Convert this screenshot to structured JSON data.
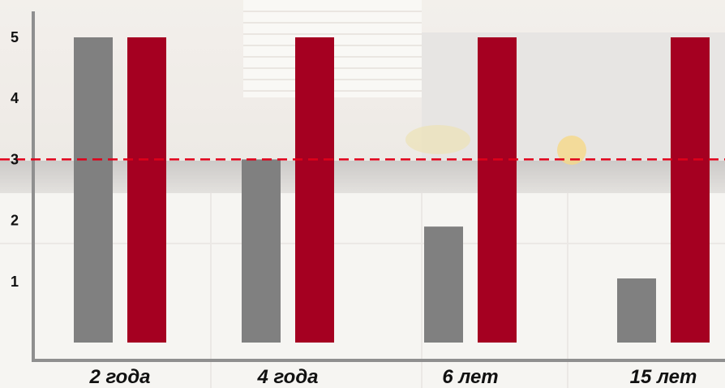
{
  "chart_data": {
    "type": "bar",
    "categories": [
      "2 года",
      "4 года",
      "6 лет",
      "15 лет"
    ],
    "series": [
      {
        "values": [
          5,
          3,
          1.9,
          1.05
        ],
        "color": "#808080"
      },
      {
        "values": [
          5,
          5,
          5,
          5
        ],
        "color": "#a50021"
      }
    ],
    "yticks": [
      1,
      2,
      3,
      4,
      5
    ],
    "ylim": [
      0,
      5.4
    ],
    "reference_line": {
      "value": 3,
      "color": "#e0001a",
      "style": "dashed"
    },
    "grid": false,
    "title": "",
    "xlabel": "",
    "ylabel": ""
  }
}
